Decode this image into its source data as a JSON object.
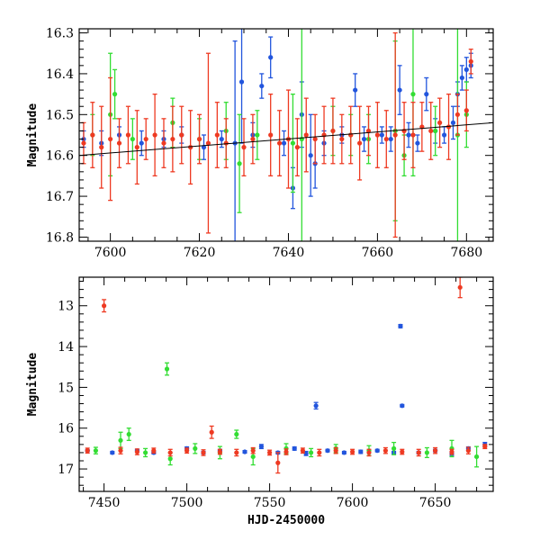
{
  "chart_data": [
    {
      "type": "scatter",
      "panel": "top",
      "xlabel": "",
      "ylabel": "Magnitude",
      "xlim": [
        7593,
        7686
      ],
      "ylim": [
        16.81,
        16.29
      ],
      "y_inverted": true,
      "x_ticks": [
        7600,
        7620,
        7640,
        7660,
        7680
      ],
      "y_ticks": [
        16.3,
        16.4,
        16.5,
        16.6,
        16.7,
        16.8
      ],
      "series": [
        {
          "color": "#2255dd",
          "x": [
            7594,
            7598,
            7602,
            7607,
            7612,
            7616,
            7621,
            7625,
            7628,
            7629.5,
            7632,
            7634,
            7636,
            7639,
            7641,
            7643,
            7645,
            7646,
            7648,
            7652,
            7655,
            7657,
            7661,
            7663,
            7665,
            7667,
            7669,
            7671,
            7673,
            7675,
            7677,
            7678,
            7679,
            7680,
            7681
          ],
          "y": [
            16.56,
            16.57,
            16.55,
            16.57,
            16.56,
            16.55,
            16.58,
            16.56,
            16.57,
            16.42,
            16.55,
            16.43,
            16.36,
            16.57,
            16.68,
            16.5,
            16.6,
            16.62,
            16.57,
            16.55,
            16.44,
            16.56,
            16.55,
            16.56,
            16.44,
            16.55,
            16.57,
            16.45,
            16.54,
            16.55,
            16.52,
            16.45,
            16.41,
            16.39,
            16.38
          ],
          "err": [
            0.02,
            0.03,
            0.02,
            0.03,
            0.02,
            0.02,
            0.03,
            0.02,
            0.25,
            0.15,
            0.03,
            0.03,
            0.05,
            0.03,
            0.05,
            0.08,
            0.1,
            0.06,
            0.03,
            0.02,
            0.04,
            0.03,
            0.02,
            0.03,
            0.06,
            0.03,
            0.02,
            0.04,
            0.03,
            0.02,
            0.04,
            0.03,
            0.03,
            0.03,
            0.03
          ]
        },
        {
          "color": "#33dd33",
          "x": [
            7596,
            7600,
            7601,
            7605,
            7614,
            7620,
            7626,
            7629,
            7633,
            7641,
            7643,
            7650,
            7654,
            7658,
            7664,
            7666,
            7668,
            7673,
            7678,
            7680
          ],
          "y": [
            16.55,
            16.5,
            16.45,
            16.56,
            16.52,
            16.56,
            16.54,
            16.62,
            16.55,
            16.57,
            16.56,
            16.54,
            16.55,
            16.56,
            16.54,
            16.6,
            16.45,
            16.54,
            16.55,
            16.5
          ],
          "err": [
            0.05,
            0.15,
            0.06,
            0.05,
            0.06,
            0.05,
            0.07,
            0.12,
            0.06,
            0.12,
            0.28,
            0.06,
            0.05,
            0.06,
            0.22,
            0.05,
            0.2,
            0.06,
            0.3,
            0.08
          ]
        },
        {
          "color": "#ee3a22",
          "x": [
            7594,
            7596,
            7598,
            7600,
            7602,
            7604,
            7606,
            7608,
            7610,
            7612,
            7614,
            7616,
            7618,
            7620,
            7622,
            7624,
            7626,
            7630,
            7632,
            7636,
            7638,
            7640,
            7642,
            7644,
            7646,
            7648,
            7650,
            7652,
            7654,
            7656,
            7658,
            7660,
            7662,
            7664,
            7666,
            7668,
            7670,
            7672,
            7674,
            7676,
            7678,
            7680,
            7681
          ],
          "y": [
            16.57,
            16.55,
            16.58,
            16.56,
            16.57,
            16.55,
            16.58,
            16.56,
            16.55,
            16.57,
            16.56,
            16.55,
            16.58,
            16.56,
            16.57,
            16.55,
            16.57,
            16.58,
            16.56,
            16.55,
            16.57,
            16.56,
            16.58,
            16.55,
            16.56,
            16.55,
            16.54,
            16.56,
            16.55,
            16.57,
            16.54,
            16.55,
            16.56,
            16.55,
            16.54,
            16.55,
            16.53,
            16.54,
            16.52,
            16.53,
            16.5,
            16.49,
            16.37
          ],
          "err": [
            0.05,
            0.08,
            0.1,
            0.15,
            0.06,
            0.07,
            0.09,
            0.05,
            0.1,
            0.06,
            0.08,
            0.07,
            0.09,
            0.06,
            0.22,
            0.08,
            0.06,
            0.07,
            0.06,
            0.1,
            0.08,
            0.12,
            0.07,
            0.09,
            0.06,
            0.07,
            0.08,
            0.06,
            0.07,
            0.09,
            0.06,
            0.08,
            0.07,
            0.25,
            0.07,
            0.08,
            0.06,
            0.07,
            0.06,
            0.08,
            0.05,
            0.05,
            0.03
          ]
        }
      ],
      "trend_line": {
        "color": "#000000",
        "x": [
          7593,
          7686
        ],
        "y": [
          16.6,
          16.52
        ]
      }
    },
    {
      "type": "scatter",
      "panel": "bottom",
      "xlabel": "HJD-2450000",
      "ylabel": "Magnitude",
      "xlim": [
        7435,
        7685
      ],
      "ylim": [
        17.55,
        12.3
      ],
      "y_inverted": true,
      "x_ticks": [
        7450,
        7500,
        7550,
        7600,
        7650
      ],
      "y_ticks": [
        13,
        14,
        15,
        16,
        17
      ],
      "series": [
        {
          "color": "#2255dd",
          "x": [
            7440,
            7455,
            7470,
            7480,
            7500,
            7510,
            7520,
            7535,
            7545,
            7555,
            7565,
            7572,
            7578,
            7585,
            7595,
            7605,
            7615,
            7625,
            7629,
            7630,
            7640,
            7650,
            7660,
            7670,
            7680
          ],
          "y": [
            16.55,
            16.6,
            16.55,
            16.6,
            16.5,
            16.6,
            16.55,
            16.58,
            16.45,
            16.6,
            16.5,
            16.62,
            15.45,
            16.55,
            16.6,
            16.58,
            16.55,
            16.6,
            13.5,
            15.45,
            16.6,
            16.55,
            16.62,
            16.5,
            16.4
          ],
          "err": [
            0.02,
            0.03,
            0.03,
            0.03,
            0.04,
            0.03,
            0.03,
            0.03,
            0.05,
            0.03,
            0.04,
            0.05,
            0.08,
            0.03,
            0.03,
            0.04,
            0.03,
            0.03,
            0.04,
            0.03,
            0.03,
            0.03,
            0.05,
            0.04,
            0.05
          ]
        },
        {
          "color": "#33dd33",
          "x": [
            7445,
            7460,
            7465,
            7475,
            7488,
            7490,
            7505,
            7520,
            7530,
            7540,
            7560,
            7575,
            7590,
            7610,
            7625,
            7645,
            7660,
            7675
          ],
          "y": [
            16.55,
            16.3,
            16.15,
            16.6,
            14.55,
            16.75,
            16.5,
            16.6,
            16.15,
            16.7,
            16.5,
            16.6,
            16.5,
            16.55,
            16.5,
            16.6,
            16.5,
            16.7
          ],
          "err": [
            0.08,
            0.2,
            0.15,
            0.1,
            0.15,
            0.15,
            0.12,
            0.15,
            0.1,
            0.2,
            0.12,
            0.1,
            0.1,
            0.12,
            0.15,
            0.12,
            0.2,
            0.25
          ]
        },
        {
          "color": "#ee3a22",
          "x": [
            7440,
            7450,
            7460,
            7470,
            7480,
            7490,
            7500,
            7510,
            7515,
            7520,
            7530,
            7540,
            7550,
            7555,
            7560,
            7570,
            7580,
            7590,
            7600,
            7610,
            7620,
            7630,
            7640,
            7650,
            7660,
            7665,
            7670,
            7680
          ],
          "y": [
            16.55,
            13.0,
            16.55,
            16.58,
            16.55,
            16.6,
            16.55,
            16.6,
            16.1,
            16.58,
            16.6,
            16.55,
            16.6,
            16.85,
            16.58,
            16.55,
            16.6,
            16.55,
            16.58,
            16.6,
            16.55,
            16.58,
            16.6,
            16.55,
            16.58,
            12.55,
            16.55,
            16.45
          ],
          "err": [
            0.06,
            0.15,
            0.08,
            0.07,
            0.06,
            0.08,
            0.06,
            0.07,
            0.15,
            0.06,
            0.08,
            0.07,
            0.06,
            0.25,
            0.07,
            0.06,
            0.08,
            0.07,
            0.06,
            0.08,
            0.07,
            0.06,
            0.08,
            0.07,
            0.06,
            0.25,
            0.08,
            0.05
          ]
        }
      ]
    }
  ]
}
